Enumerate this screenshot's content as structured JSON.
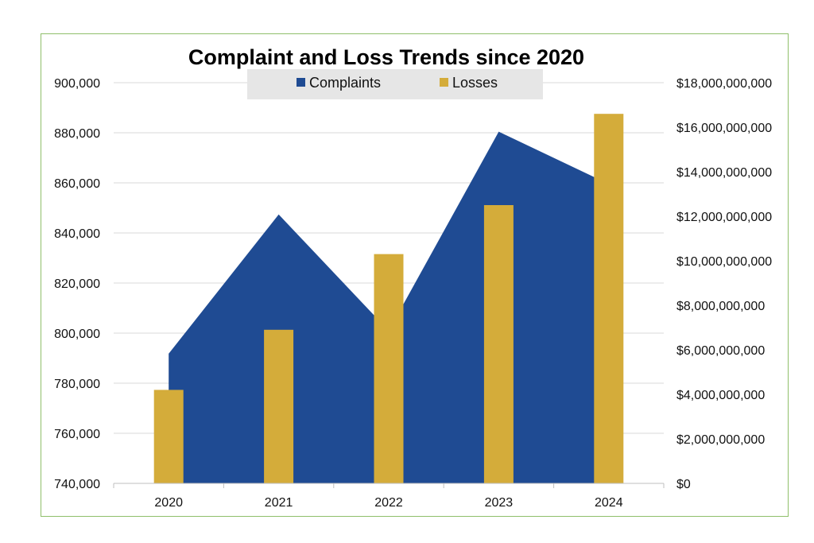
{
  "chart_data": {
    "type": "area+bar",
    "title": "Complaint and Loss Trends since 2020",
    "categories": [
      "2020",
      "2021",
      "2022",
      "2023",
      "2024"
    ],
    "series": [
      {
        "name": "Complaints",
        "type": "area",
        "axis": "left",
        "color": "#1f4b93",
        "values": [
          791790,
          847376,
          800944,
          880418,
          859532
        ]
      },
      {
        "name": "Losses",
        "type": "bar",
        "axis": "right",
        "color": "#d4ac3a",
        "values": [
          4200000000,
          6900000000,
          10300000000,
          12500000000,
          16600000000
        ]
      }
    ],
    "y_left": {
      "range": [
        740000,
        900000
      ],
      "ticks": [
        740000,
        760000,
        780000,
        800000,
        820000,
        840000,
        860000,
        880000,
        900000
      ],
      "tick_labels": [
        "740,000",
        "760,000",
        "780,000",
        "800,000",
        "820,000",
        "840,000",
        "860,000",
        "880,000",
        "900,000"
      ]
    },
    "y_right": {
      "range": [
        0,
        18000000000
      ],
      "ticks": [
        0,
        2000000000,
        4000000000,
        6000000000,
        8000000000,
        10000000000,
        12000000000,
        14000000000,
        16000000000,
        18000000000
      ],
      "tick_labels": [
        "$0",
        "$2,000,000,000",
        "$4,000,000,000",
        "$6,000,000,000",
        "$8,000,000,000",
        "$10,000,000,000",
        "$12,000,000,000",
        "$14,000,000,000",
        "$16,000,000,000",
        "$18,000,000,000"
      ]
    },
    "legend": {
      "position": "top-center",
      "entries": [
        "Complaints",
        "Losses"
      ],
      "background": "#e6e6e6"
    },
    "grid": true,
    "grid_color": "#d9d9d9"
  }
}
